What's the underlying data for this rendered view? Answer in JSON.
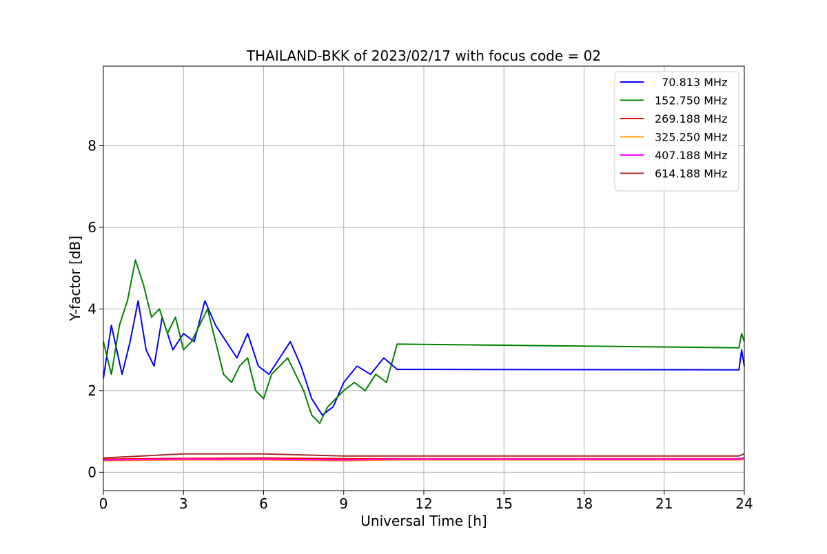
{
  "chart_data": {
    "type": "line",
    "title": "THAILAND-BKK of 2023/02/17 with focus code = 02",
    "xlabel": "Universal Time [h]",
    "ylabel": "Y-factor [dB]",
    "xlim": [
      0,
      24
    ],
    "ylim": [
      -0.45,
      9.95
    ],
    "xticks": [
      0,
      3,
      6,
      9,
      12,
      15,
      18,
      21,
      24
    ],
    "yticks": [
      0,
      2,
      4,
      6,
      8
    ],
    "grid": true,
    "legend_position": "top-right",
    "series": [
      {
        "name": "  70.813 MHz",
        "color": "#0000ff",
        "points": [
          [
            0,
            2.3
          ],
          [
            0.3,
            3.6
          ],
          [
            0.7,
            2.4
          ],
          [
            1.0,
            3.2
          ],
          [
            1.3,
            4.2
          ],
          [
            1.6,
            3.0
          ],
          [
            1.9,
            2.6
          ],
          [
            2.2,
            3.8
          ],
          [
            2.6,
            3.0
          ],
          [
            3.0,
            3.4
          ],
          [
            3.4,
            3.2
          ],
          [
            3.8,
            4.2
          ],
          [
            4.2,
            3.6
          ],
          [
            4.6,
            3.2
          ],
          [
            5.0,
            2.8
          ],
          [
            5.4,
            3.4
          ],
          [
            5.8,
            2.6
          ],
          [
            6.2,
            2.4
          ],
          [
            6.6,
            2.8
          ],
          [
            7.0,
            3.2
          ],
          [
            7.4,
            2.6
          ],
          [
            7.8,
            1.8
          ],
          [
            8.2,
            1.4
          ],
          [
            8.6,
            1.6
          ],
          [
            9.0,
            2.2
          ],
          [
            9.5,
            2.6
          ],
          [
            10.0,
            2.4
          ],
          [
            10.5,
            2.8
          ],
          [
            11.0,
            2.52
          ],
          [
            23.8,
            2.51
          ],
          [
            23.9,
            3.0
          ],
          [
            24.0,
            2.6
          ]
        ]
      },
      {
        "name": "152.750 MHz",
        "color": "#008000",
        "points": [
          [
            0,
            3.2
          ],
          [
            0.3,
            2.4
          ],
          [
            0.6,
            3.6
          ],
          [
            0.9,
            4.2
          ],
          [
            1.2,
            5.2
          ],
          [
            1.5,
            4.6
          ],
          [
            1.8,
            3.8
          ],
          [
            2.1,
            4.0
          ],
          [
            2.4,
            3.4
          ],
          [
            2.7,
            3.8
          ],
          [
            3.0,
            3.0
          ],
          [
            3.3,
            3.2
          ],
          [
            3.6,
            3.6
          ],
          [
            3.9,
            4.0
          ],
          [
            4.2,
            3.2
          ],
          [
            4.5,
            2.4
          ],
          [
            4.8,
            2.2
          ],
          [
            5.1,
            2.6
          ],
          [
            5.4,
            2.8
          ],
          [
            5.7,
            2.0
          ],
          [
            6.0,
            1.8
          ],
          [
            6.3,
            2.4
          ],
          [
            6.6,
            2.6
          ],
          [
            6.9,
            2.8
          ],
          [
            7.2,
            2.4
          ],
          [
            7.5,
            2.0
          ],
          [
            7.8,
            1.4
          ],
          [
            8.1,
            1.2
          ],
          [
            8.4,
            1.6
          ],
          [
            8.7,
            1.8
          ],
          [
            9.0,
            2.0
          ],
          [
            9.4,
            2.2
          ],
          [
            9.8,
            2.0
          ],
          [
            10.2,
            2.4
          ],
          [
            10.6,
            2.2
          ],
          [
            11.0,
            3.14
          ],
          [
            23.8,
            3.05
          ],
          [
            23.9,
            3.4
          ],
          [
            24.0,
            3.2
          ]
        ]
      },
      {
        "name": "269.188 MHz",
        "color": "#ff0000",
        "points": [
          [
            0,
            0.32
          ],
          [
            3,
            0.34
          ],
          [
            6,
            0.35
          ],
          [
            9,
            0.33
          ],
          [
            11.0,
            0.33
          ],
          [
            23.8,
            0.33
          ],
          [
            24.0,
            0.35
          ]
        ]
      },
      {
        "name": "325.250 MHz",
        "color": "#ffa500",
        "points": [
          [
            0,
            0.28
          ],
          [
            3,
            0.3
          ],
          [
            6,
            0.3
          ],
          [
            9,
            0.28
          ],
          [
            11.0,
            0.3
          ],
          [
            23.8,
            0.3
          ],
          [
            24.0,
            0.32
          ]
        ]
      },
      {
        "name": "407.188 MHz",
        "color": "#ff00ff",
        "points": [
          [
            0,
            0.3
          ],
          [
            3,
            0.32
          ],
          [
            6,
            0.32
          ],
          [
            9,
            0.3
          ],
          [
            11.0,
            0.32
          ],
          [
            23.8,
            0.32
          ],
          [
            24.0,
            0.34
          ]
        ]
      },
      {
        "name": "614.188 MHz",
        "color": "#a52a2a",
        "points": [
          [
            0,
            0.35
          ],
          [
            3,
            0.45
          ],
          [
            6,
            0.45
          ],
          [
            9,
            0.4
          ],
          [
            11.0,
            0.4
          ],
          [
            23.8,
            0.4
          ],
          [
            24.0,
            0.45
          ]
        ]
      }
    ]
  }
}
